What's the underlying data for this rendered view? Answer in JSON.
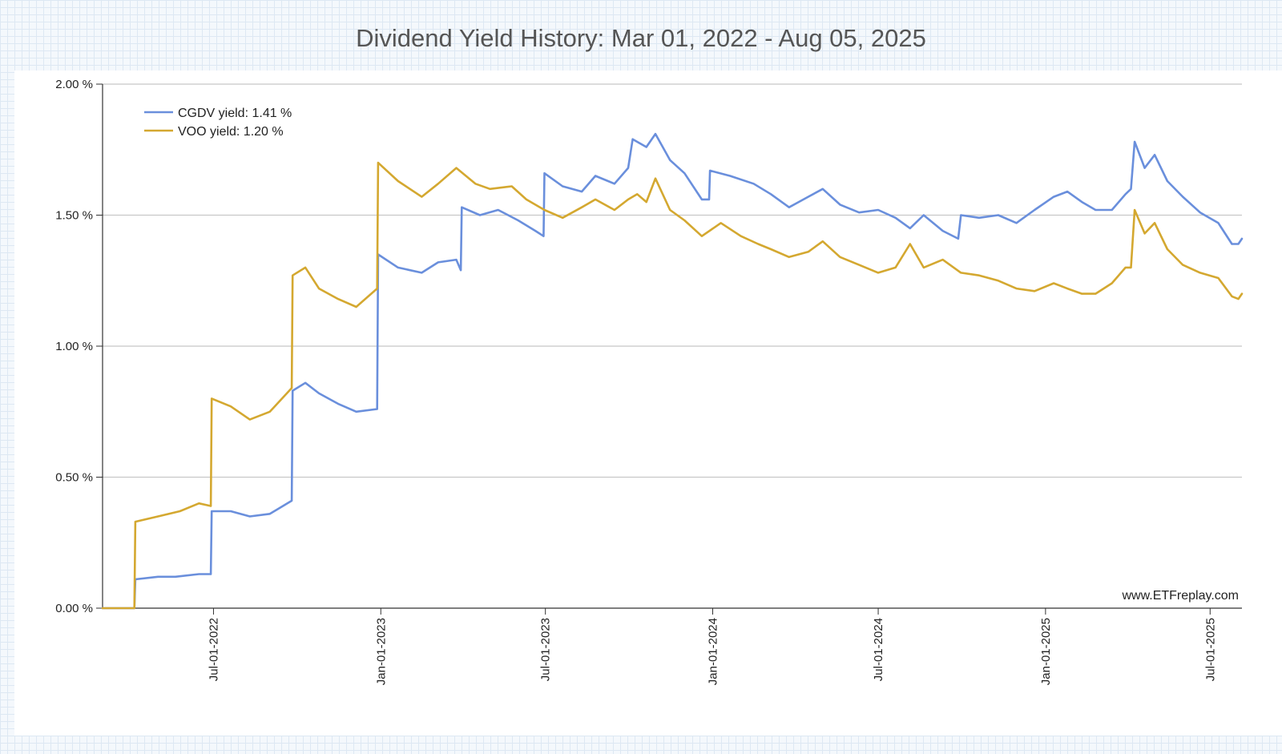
{
  "chart_data": {
    "type": "line",
    "title": "Dividend Yield History: Mar 01, 2022 - Aug 05, 2025",
    "xlabel": "",
    "ylabel": "",
    "ylim": [
      0,
      2.0
    ],
    "y_ticks": [
      {
        "value": 0.0,
        "label": "0.00 %"
      },
      {
        "value": 0.5,
        "label": "0.50 %"
      },
      {
        "value": 1.0,
        "label": "1.00 %"
      },
      {
        "value": 1.5,
        "label": "1.50 %"
      },
      {
        "value": 2.0,
        "label": "2.00 %"
      }
    ],
    "x_range": [
      "2022-03-01",
      "2025-08-05"
    ],
    "x_ticks": [
      {
        "date": "2022-07-01",
        "label": "Jul-01-2022"
      },
      {
        "date": "2023-01-01",
        "label": "Jan-01-2023"
      },
      {
        "date": "2023-07-01",
        "label": "Jul-01-2023"
      },
      {
        "date": "2024-01-01",
        "label": "Jan-01-2024"
      },
      {
        "date": "2024-07-01",
        "label": "Jul-01-2024"
      },
      {
        "date": "2025-01-01",
        "label": "Jan-01-2025"
      },
      {
        "date": "2025-07-01",
        "label": "Jul-01-2025"
      }
    ],
    "grid": "horizontal",
    "legend_position": "top-left",
    "watermark": "www.ETFreplay.com",
    "series": [
      {
        "name": "CGDV yield: 1.41 %",
        "color": "#6a8fdc",
        "points": [
          [
            "2022-03-01",
            0.0
          ],
          [
            "2022-04-05",
            0.0
          ],
          [
            "2022-04-06",
            0.11
          ],
          [
            "2022-05-01",
            0.12
          ],
          [
            "2022-05-20",
            0.12
          ],
          [
            "2022-06-15",
            0.13
          ],
          [
            "2022-06-28",
            0.13
          ],
          [
            "2022-06-29",
            0.37
          ],
          [
            "2022-07-20",
            0.37
          ],
          [
            "2022-08-10",
            0.35
          ],
          [
            "2022-09-01",
            0.36
          ],
          [
            "2022-09-25",
            0.41
          ],
          [
            "2022-09-26",
            0.83
          ],
          [
            "2022-10-10",
            0.86
          ],
          [
            "2022-10-25",
            0.82
          ],
          [
            "2022-11-15",
            0.78
          ],
          [
            "2022-12-05",
            0.75
          ],
          [
            "2022-12-28",
            0.76
          ],
          [
            "2022-12-29",
            1.35
          ],
          [
            "2023-01-20",
            1.3
          ],
          [
            "2023-02-15",
            1.28
          ],
          [
            "2023-03-05",
            1.32
          ],
          [
            "2023-03-25",
            1.33
          ],
          [
            "2023-03-30",
            1.29
          ],
          [
            "2023-03-31",
            1.53
          ],
          [
            "2023-04-20",
            1.5
          ],
          [
            "2023-05-10",
            1.52
          ],
          [
            "2023-06-01",
            1.48
          ],
          [
            "2023-06-20",
            1.44
          ],
          [
            "2023-06-29",
            1.42
          ],
          [
            "2023-06-30",
            1.66
          ],
          [
            "2023-07-20",
            1.61
          ],
          [
            "2023-08-10",
            1.59
          ],
          [
            "2023-08-25",
            1.65
          ],
          [
            "2023-09-15",
            1.62
          ],
          [
            "2023-09-30",
            1.68
          ],
          [
            "2023-10-05",
            1.79
          ],
          [
            "2023-10-20",
            1.76
          ],
          [
            "2023-10-30",
            1.81
          ],
          [
            "2023-11-15",
            1.71
          ],
          [
            "2023-12-01",
            1.66
          ],
          [
            "2023-12-20",
            1.56
          ],
          [
            "2023-12-28",
            1.56
          ],
          [
            "2023-12-29",
            1.67
          ],
          [
            "2024-01-20",
            1.65
          ],
          [
            "2024-02-15",
            1.62
          ],
          [
            "2024-03-05",
            1.58
          ],
          [
            "2024-03-25",
            1.53
          ],
          [
            "2024-04-15",
            1.57
          ],
          [
            "2024-05-01",
            1.6
          ],
          [
            "2024-05-20",
            1.54
          ],
          [
            "2024-06-10",
            1.51
          ],
          [
            "2024-07-01",
            1.52
          ],
          [
            "2024-07-20",
            1.49
          ],
          [
            "2024-08-05",
            1.45
          ],
          [
            "2024-08-20",
            1.5
          ],
          [
            "2024-09-10",
            1.44
          ],
          [
            "2024-09-27",
            1.41
          ],
          [
            "2024-09-30",
            1.5
          ],
          [
            "2024-10-20",
            1.49
          ],
          [
            "2024-11-10",
            1.5
          ],
          [
            "2024-11-30",
            1.47
          ],
          [
            "2024-12-20",
            1.52
          ],
          [
            "2025-01-10",
            1.57
          ],
          [
            "2025-01-25",
            1.59
          ],
          [
            "2025-02-10",
            1.55
          ],
          [
            "2025-02-25",
            1.52
          ],
          [
            "2025-03-15",
            1.52
          ],
          [
            "2025-03-30",
            1.58
          ],
          [
            "2025-04-05",
            1.6
          ],
          [
            "2025-04-09",
            1.78
          ],
          [
            "2025-04-20",
            1.68
          ],
          [
            "2025-05-01",
            1.73
          ],
          [
            "2025-05-15",
            1.63
          ],
          [
            "2025-06-01",
            1.57
          ],
          [
            "2025-06-20",
            1.51
          ],
          [
            "2025-07-10",
            1.47
          ],
          [
            "2025-07-25",
            1.39
          ],
          [
            "2025-08-01",
            1.39
          ],
          [
            "2025-08-05",
            1.41
          ]
        ]
      },
      {
        "name": "VOO yield: 1.20 %",
        "color": "#d4a830",
        "points": [
          [
            "2022-03-01",
            0.0
          ],
          [
            "2022-04-05",
            0.0
          ],
          [
            "2022-04-06",
            0.33
          ],
          [
            "2022-05-01",
            0.35
          ],
          [
            "2022-05-25",
            0.37
          ],
          [
            "2022-06-15",
            0.4
          ],
          [
            "2022-06-28",
            0.39
          ],
          [
            "2022-06-29",
            0.8
          ],
          [
            "2022-07-20",
            0.77
          ],
          [
            "2022-08-10",
            0.72
          ],
          [
            "2022-09-01",
            0.75
          ],
          [
            "2022-09-25",
            0.84
          ],
          [
            "2022-09-26",
            1.27
          ],
          [
            "2022-10-10",
            1.3
          ],
          [
            "2022-10-25",
            1.22
          ],
          [
            "2022-11-15",
            1.18
          ],
          [
            "2022-12-05",
            1.15
          ],
          [
            "2022-12-28",
            1.22
          ],
          [
            "2022-12-29",
            1.7
          ],
          [
            "2023-01-20",
            1.63
          ],
          [
            "2023-02-15",
            1.57
          ],
          [
            "2023-03-05",
            1.62
          ],
          [
            "2023-03-25",
            1.68
          ],
          [
            "2023-04-15",
            1.62
          ],
          [
            "2023-05-01",
            1.6
          ],
          [
            "2023-05-25",
            1.61
          ],
          [
            "2023-06-10",
            1.56
          ],
          [
            "2023-06-30",
            1.52
          ],
          [
            "2023-07-20",
            1.49
          ],
          [
            "2023-08-10",
            1.53
          ],
          [
            "2023-08-25",
            1.56
          ],
          [
            "2023-09-15",
            1.52
          ],
          [
            "2023-09-30",
            1.56
          ],
          [
            "2023-10-10",
            1.58
          ],
          [
            "2023-10-20",
            1.55
          ],
          [
            "2023-10-30",
            1.64
          ],
          [
            "2023-11-15",
            1.52
          ],
          [
            "2023-12-01",
            1.48
          ],
          [
            "2023-12-20",
            1.42
          ],
          [
            "2024-01-10",
            1.47
          ],
          [
            "2024-02-01",
            1.42
          ],
          [
            "2024-02-20",
            1.39
          ],
          [
            "2024-03-05",
            1.37
          ],
          [
            "2024-03-25",
            1.34
          ],
          [
            "2024-04-15",
            1.36
          ],
          [
            "2024-05-01",
            1.4
          ],
          [
            "2024-05-20",
            1.34
          ],
          [
            "2024-06-10",
            1.31
          ],
          [
            "2024-07-01",
            1.28
          ],
          [
            "2024-07-20",
            1.3
          ],
          [
            "2024-08-05",
            1.39
          ],
          [
            "2024-08-20",
            1.3
          ],
          [
            "2024-09-10",
            1.33
          ],
          [
            "2024-09-30",
            1.28
          ],
          [
            "2024-10-20",
            1.27
          ],
          [
            "2024-11-10",
            1.25
          ],
          [
            "2024-11-30",
            1.22
          ],
          [
            "2024-12-20",
            1.21
          ],
          [
            "2025-01-10",
            1.24
          ],
          [
            "2025-01-25",
            1.22
          ],
          [
            "2025-02-10",
            1.2
          ],
          [
            "2025-02-25",
            1.2
          ],
          [
            "2025-03-15",
            1.24
          ],
          [
            "2025-03-30",
            1.3
          ],
          [
            "2025-04-05",
            1.3
          ],
          [
            "2025-04-09",
            1.52
          ],
          [
            "2025-04-20",
            1.43
          ],
          [
            "2025-05-01",
            1.47
          ],
          [
            "2025-05-15",
            1.37
          ],
          [
            "2025-06-01",
            1.31
          ],
          [
            "2025-06-20",
            1.28
          ],
          [
            "2025-07-10",
            1.26
          ],
          [
            "2025-07-25",
            1.19
          ],
          [
            "2025-08-01",
            1.18
          ],
          [
            "2025-08-05",
            1.2
          ]
        ]
      }
    ]
  }
}
